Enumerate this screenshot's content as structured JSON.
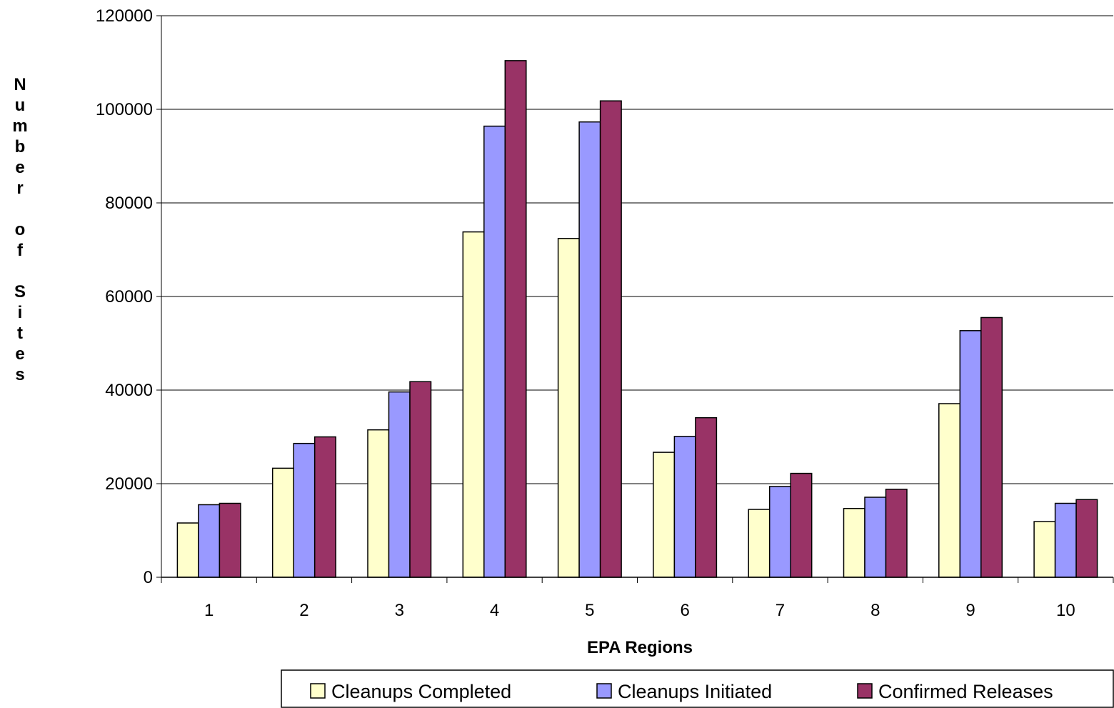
{
  "chart_data": {
    "type": "bar",
    "title": "",
    "xlabel": "EPA Regions",
    "ylabel": "Number of Sites",
    "categories": [
      "1",
      "2",
      "3",
      "4",
      "5",
      "6",
      "7",
      "8",
      "9",
      "10"
    ],
    "series": [
      {
        "name": "Cleanups Completed",
        "color": "#FFFFCC",
        "values": [
          11600,
          23300,
          31500,
          73800,
          72400,
          26700,
          14500,
          14700,
          37100,
          11900
        ]
      },
      {
        "name": "Cleanups Initiated",
        "color": "#9999FF",
        "values": [
          15500,
          28600,
          39600,
          96400,
          97300,
          30100,
          19400,
          17100,
          52700,
          15800
        ]
      },
      {
        "name": "Confirmed Releases",
        "color": "#993366",
        "values": [
          15800,
          30000,
          41800,
          110400,
          101800,
          34100,
          22200,
          18800,
          55500,
          16600
        ]
      }
    ],
    "ylim": [
      0,
      120000
    ],
    "yticks": [
      "0",
      "20000",
      "40000",
      "60000",
      "80000",
      "100000",
      "120000"
    ],
    "grid": true,
    "legend_position": "bottom"
  }
}
